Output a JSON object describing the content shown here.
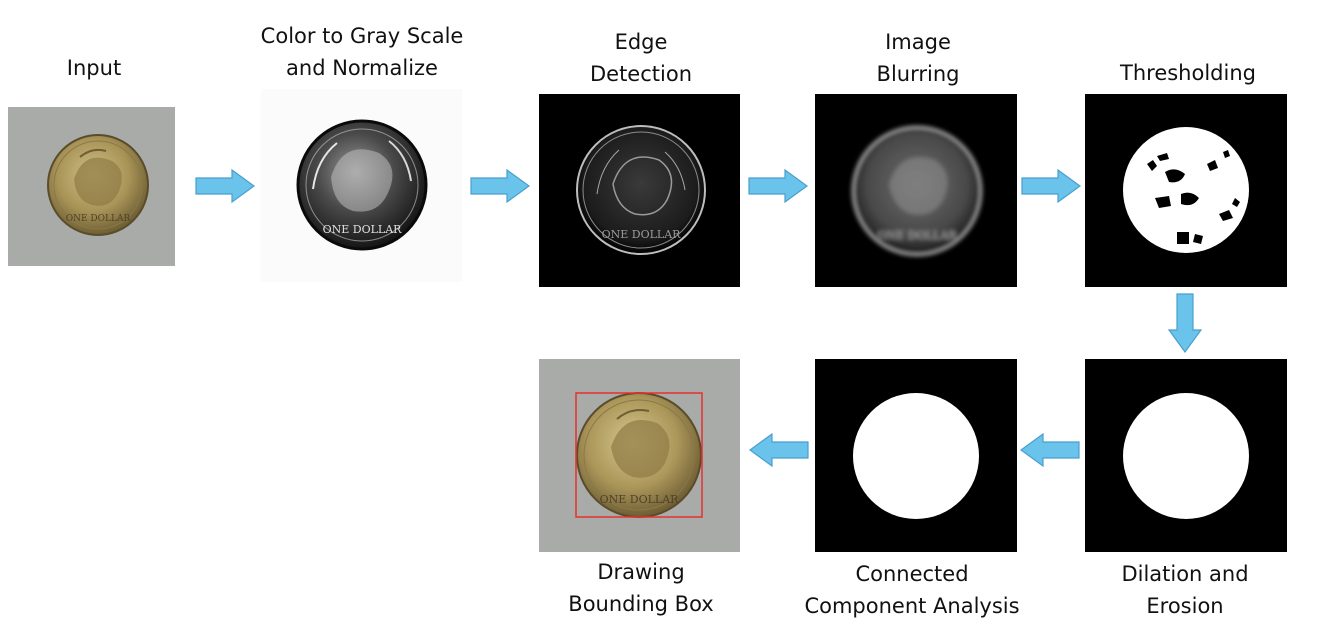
{
  "stages": [
    {
      "id": "input",
      "lines": [
        "Input"
      ]
    },
    {
      "id": "gray",
      "lines": [
        "Color to Gray Scale",
        "and Normalize"
      ]
    },
    {
      "id": "edge",
      "lines": [
        "Edge",
        "Detection"
      ]
    },
    {
      "id": "blur",
      "lines": [
        "Image",
        "Blurring"
      ]
    },
    {
      "id": "thresh",
      "lines": [
        "Thresholding"
      ]
    },
    {
      "id": "dilate",
      "lines": [
        "Dilation and",
        "Erosion"
      ]
    },
    {
      "id": "cca",
      "lines": [
        "Connected",
        "Component Analysis"
      ]
    },
    {
      "id": "bbox",
      "lines": [
        "Drawing",
        "Bounding Box"
      ]
    }
  ],
  "coin_text": "ONE DOLLAR",
  "colors": {
    "arrow_fill": "#6ac3ea",
    "arrow_stroke": "#4a9fcd",
    "bbox_stroke": "#e83030",
    "input_background": "#a9aba9",
    "coin_gold": "#b4a064"
  }
}
